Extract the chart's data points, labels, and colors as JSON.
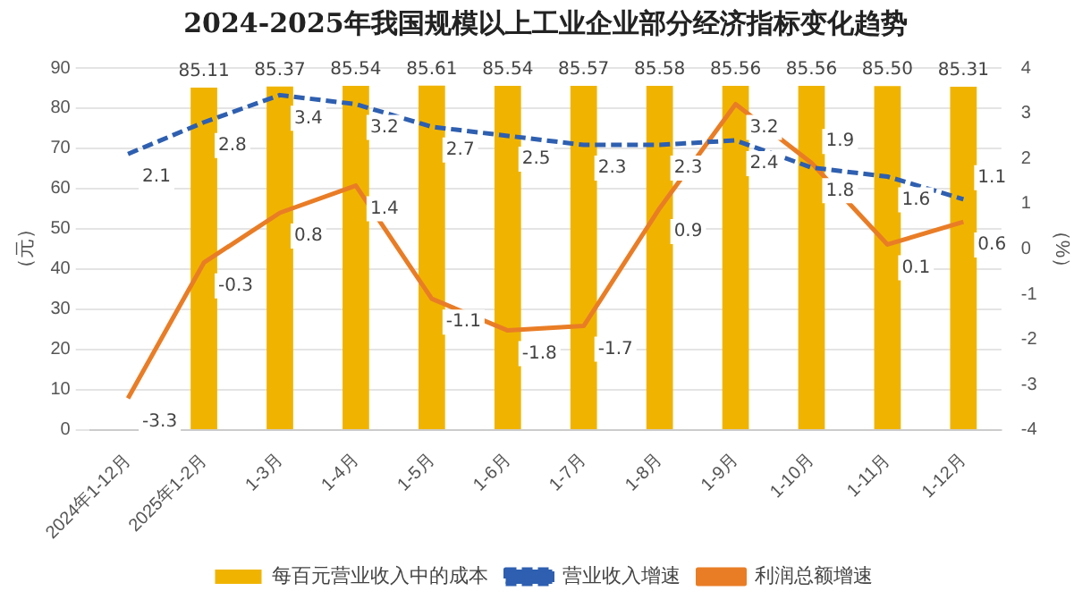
{
  "chart_data": {
    "type": "bar",
    "title": "2024-2025年我国规模以上工业企业部分经济指标变化趋势",
    "ylabel": "（元）",
    "y2label": "（%）",
    "categories": [
      "2024年1-12月",
      "2025年1-2月",
      "1-3月",
      "1-4月",
      "1-5月",
      "1-6月",
      "1-7月",
      "1-8月",
      "1-9月",
      "1-10月",
      "1-11月",
      "1-12月"
    ],
    "series": [
      {
        "name": "每百元营业收入中的成本",
        "color": "#f0b400",
        "values": [
          null,
          85.11,
          85.37,
          85.54,
          85.61,
          85.54,
          85.57,
          85.58,
          85.56,
          85.56,
          85.5,
          85.31
        ],
        "value_labels": [
          null,
          "85.11",
          "85.37",
          "85.54",
          "85.61",
          "85.54",
          "85.57",
          "85.58",
          "85.56",
          "85.56",
          "85.50",
          "85.31"
        ]
      },
      {
        "name": "营业收入增速",
        "type": "line",
        "axis": "y2",
        "color": "#2e5fb0",
        "line_style": "dashed",
        "values": [
          2.1,
          2.8,
          3.4,
          3.2,
          2.7,
          2.5,
          2.3,
          2.3,
          2.4,
          1.8,
          1.6,
          1.1
        ],
        "value_labels": [
          "2.1",
          "2.8",
          "3.4",
          "3.2",
          "2.7",
          "2.5",
          "2.3",
          "2.3",
          "2.4",
          "1.8",
          "1.6",
          "1.1"
        ]
      },
      {
        "name": "利润总额增速",
        "type": "line",
        "axis": "y2",
        "color": "#e97d26",
        "line_style": "solid",
        "values": [
          -3.3,
          -0.3,
          0.8,
          1.4,
          -1.1,
          -1.8,
          -1.7,
          0.9,
          3.2,
          1.9,
          0.1,
          0.6
        ],
        "value_labels": [
          "-3.3",
          "-0.3",
          "0.8",
          "1.4",
          "-1.1",
          "-1.8",
          "-1.7",
          "0.9",
          "3.2",
          "1.9",
          "0.1",
          "0.6"
        ]
      }
    ],
    "ylim": [
      0,
      90
    ],
    "yticks": [
      0,
      10,
      20,
      30,
      40,
      50,
      60,
      70,
      80,
      90
    ],
    "y2lim": [
      -4,
      4
    ],
    "y2ticks": [
      -4,
      -3,
      -2,
      -1,
      0,
      1,
      2,
      3,
      4
    ],
    "grid": "y",
    "legend": "bottom",
    "marker": "none"
  }
}
